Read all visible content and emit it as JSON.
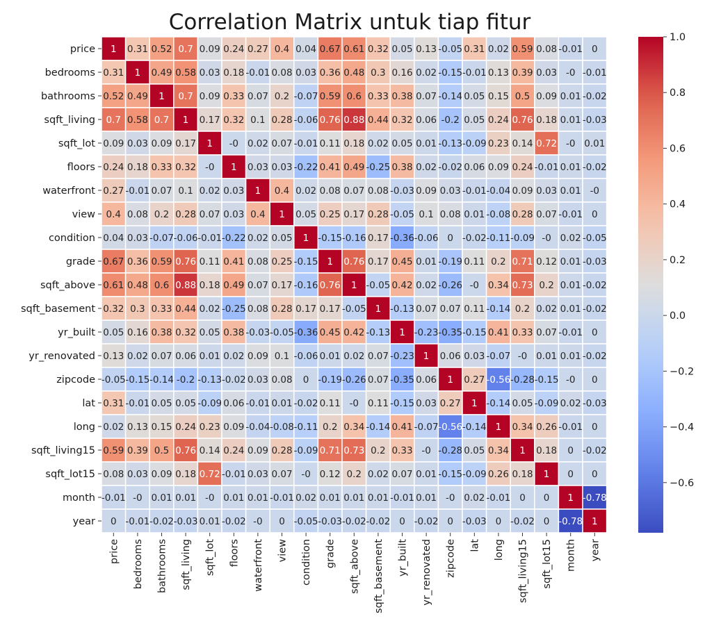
{
  "chart_data": {
    "type": "heatmap",
    "title": "Correlation Matrix untuk tiap fitur",
    "colormap": "coolwarm",
    "annotate": true,
    "cell_border_color": "#ffffff",
    "vmin": -0.78,
    "vmax": 1.0,
    "labels": [
      "price",
      "bedrooms",
      "bathrooms",
      "sqft_living",
      "sqft_lot",
      "floors",
      "waterfront",
      "view",
      "condition",
      "grade",
      "sqft_above",
      "sqft_basement",
      "yr_built",
      "yr_renovated",
      "zipcode",
      "lat",
      "long",
      "sqft_living15",
      "sqft_lot15",
      "month",
      "year"
    ],
    "values": [
      [
        1,
        0.31,
        0.52,
        0.7,
        0.09,
        0.24,
        0.27,
        0.4,
        0.04,
        0.67,
        0.61,
        0.32,
        0.05,
        0.13,
        -0.05,
        0.31,
        0.02,
        0.59,
        0.08,
        -0.01,
        0
      ],
      [
        0.31,
        1,
        0.49,
        0.58,
        0.03,
        0.18,
        -0.01,
        0.08,
        0.03,
        0.36,
        0.48,
        0.3,
        0.16,
        0.02,
        -0.15,
        -0.01,
        0.13,
        0.39,
        0.03,
        0,
        -0.01
      ],
      [
        0.52,
        0.49,
        1,
        0.7,
        0.09,
        0.33,
        0.07,
        0.2,
        -0.07,
        0.59,
        0.6,
        0.33,
        0.38,
        0.07,
        -0.14,
        0.05,
        0.15,
        0.5,
        0.09,
        0.01,
        -0.02
      ],
      [
        0.7,
        0.58,
        0.7,
        1,
        0.17,
        0.32,
        0.1,
        0.28,
        -0.06,
        0.76,
        0.88,
        0.44,
        0.32,
        0.06,
        -0.2,
        0.05,
        0.24,
        0.76,
        0.18,
        0.01,
        -0.03
      ],
      [
        0.09,
        0.03,
        0.09,
        0.17,
        1,
        0,
        0.02,
        0.07,
        -0.01,
        0.11,
        0.18,
        0.02,
        0.05,
        0.01,
        -0.13,
        -0.09,
        0.23,
        0.14,
        0.72,
        0,
        0.01
      ],
      [
        0.24,
        0.18,
        0.33,
        0.32,
        0,
        1,
        0.03,
        0.03,
        -0.22,
        0.41,
        0.49,
        -0.25,
        0.38,
        0.02,
        -0.02,
        0.06,
        0.09,
        0.24,
        -0.01,
        0.01,
        -0.02
      ],
      [
        0.27,
        -0.01,
        0.07,
        0.1,
        0.02,
        0.03,
        1,
        0.4,
        0.02,
        0.08,
        0.07,
        0.08,
        -0.03,
        0.09,
        0.03,
        -0.01,
        -0.04,
        0.09,
        0.03,
        0.01,
        0
      ],
      [
        0.4,
        0.08,
        0.2,
        0.28,
        0.07,
        0.03,
        0.4,
        1,
        0.05,
        0.25,
        0.17,
        0.28,
        -0.05,
        0.1,
        0.08,
        0.01,
        -0.08,
        0.28,
        0.07,
        -0.01,
        0
      ],
      [
        0.04,
        0.03,
        -0.07,
        -0.06,
        -0.01,
        -0.22,
        0.02,
        0.05,
        1,
        -0.15,
        -0.16,
        0.17,
        -0.36,
        -0.06,
        0,
        -0.02,
        -0.11,
        -0.09,
        0,
        0.02,
        -0.05
      ],
      [
        0.67,
        0.36,
        0.59,
        0.76,
        0.11,
        0.41,
        0.08,
        0.25,
        -0.15,
        1,
        0.76,
        0.17,
        0.45,
        0.01,
        -0.19,
        0.11,
        0.2,
        0.71,
        0.12,
        0.01,
        -0.03
      ],
      [
        0.61,
        0.48,
        0.6,
        0.88,
        0.18,
        0.49,
        0.07,
        0.17,
        -0.16,
        0.76,
        1,
        -0.05,
        0.42,
        0.02,
        -0.26,
        0,
        0.34,
        0.73,
        0.2,
        0.01,
        -0.02
      ],
      [
        0.32,
        0.3,
        0.33,
        0.44,
        0.02,
        -0.25,
        0.08,
        0.28,
        0.17,
        0.17,
        -0.05,
        1,
        -0.13,
        0.07,
        0.07,
        0.11,
        -0.14,
        0.2,
        0.02,
        0.01,
        -0.02
      ],
      [
        0.05,
        0.16,
        0.38,
        0.32,
        0.05,
        0.38,
        -0.03,
        -0.05,
        -0.36,
        0.45,
        0.42,
        -0.13,
        1,
        -0.23,
        -0.35,
        -0.15,
        0.41,
        0.33,
        0.07,
        -0.01,
        0
      ],
      [
        0.13,
        0.02,
        0.07,
        0.06,
        0.01,
        0.02,
        0.09,
        0.1,
        -0.06,
        0.01,
        0.02,
        0.07,
        -0.23,
        1,
        0.06,
        0.03,
        -0.07,
        0,
        0.01,
        0.01,
        -0.02
      ],
      [
        -0.05,
        -0.15,
        -0.14,
        -0.2,
        -0.13,
        -0.02,
        0.03,
        0.08,
        0,
        -0.19,
        -0.26,
        0.07,
        -0.35,
        0.06,
        1,
        0.27,
        -0.56,
        -0.28,
        -0.15,
        0,
        0
      ],
      [
        0.31,
        -0.01,
        0.05,
        0.05,
        -0.09,
        0.06,
        -0.01,
        0.01,
        -0.02,
        0.11,
        0,
        0.11,
        -0.15,
        0.03,
        0.27,
        1,
        -0.14,
        0.05,
        -0.09,
        0.02,
        -0.03
      ],
      [
        0.02,
        0.13,
        0.15,
        0.24,
        0.23,
        0.09,
        -0.04,
        -0.08,
        -0.11,
        0.2,
        0.34,
        -0.14,
        0.41,
        -0.07,
        -0.56,
        -0.14,
        1,
        0.34,
        0.26,
        -0.01,
        0
      ],
      [
        0.59,
        0.39,
        0.5,
        0.76,
        0.14,
        0.24,
        0.09,
        0.28,
        -0.09,
        0.71,
        0.73,
        0.2,
        0.33,
        0,
        -0.28,
        0.05,
        0.34,
        1,
        0.18,
        0,
        -0.02
      ],
      [
        0.08,
        0.03,
        0.09,
        0.18,
        0.72,
        -0.01,
        0.03,
        0.07,
        0,
        0.12,
        0.2,
        0.02,
        0.07,
        0.01,
        -0.15,
        -0.09,
        0.26,
        0.18,
        1,
        0,
        0
      ],
      [
        -0.01,
        0,
        0.01,
        0.01,
        0,
        0.01,
        0.01,
        -0.01,
        0.02,
        0.01,
        0.01,
        0.01,
        -0.01,
        0.01,
        0,
        0.02,
        -0.01,
        0,
        0,
        1,
        -0.78
      ],
      [
        0,
        -0.01,
        -0.02,
        -0.03,
        0.01,
        -0.02,
        0,
        0,
        -0.05,
        -0.03,
        -0.02,
        -0.02,
        0,
        -0.02,
        0,
        -0.03,
        0,
        -0.02,
        0,
        -0.78,
        1
      ]
    ],
    "colorbar_ticks": [
      "1.0",
      "0.8",
      "0.6",
      "0.4",
      "0.2",
      "0.0",
      "−0.2",
      "−0.4",
      "−0.6"
    ]
  }
}
